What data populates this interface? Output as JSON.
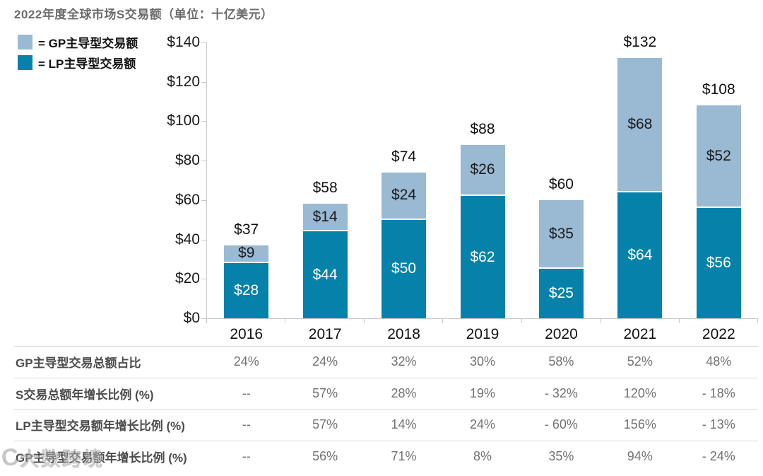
{
  "title": "2022年度全球市场S交易额（单位：十亿美元）",
  "legend": [
    {
      "label": "= GP主导型交易额",
      "color": "#9ab9d3"
    },
    {
      "label": "= LP主导型交易额",
      "color": "#0682aa"
    }
  ],
  "chart_data": {
    "type": "bar",
    "stacked": true,
    "categories": [
      "2016",
      "2017",
      "2018",
      "2019",
      "2020",
      "2021",
      "2022"
    ],
    "series": [
      {
        "name": "LP主导型交易额",
        "color": "#0682aa",
        "label_color": "#ffffff",
        "values": [
          28,
          44,
          50,
          62,
          25,
          64,
          56
        ],
        "labels": [
          "$28",
          "$44",
          "$50",
          "$62",
          "$25",
          "$64",
          "$56"
        ]
      },
      {
        "name": "GP主导型交易额",
        "color": "#9ab9d3",
        "label_color": "#1b1b1b",
        "values": [
          9,
          14,
          24,
          26,
          35,
          68,
          52
        ],
        "labels": [
          "$9",
          "$14",
          "$24",
          "$26",
          "$35",
          "$68",
          "$52"
        ]
      }
    ],
    "totals": [
      37,
      58,
      74,
      88,
      60,
      132,
      108
    ],
    "total_labels": [
      "$37",
      "$58",
      "$74",
      "$88",
      "$60",
      "$132",
      "$108"
    ],
    "ylim": [
      0,
      140
    ],
    "ytick_step": 20,
    "ytick_labels": [
      "$0",
      "$20",
      "$40",
      "$60",
      "$80",
      "$100",
      "$120",
      "$140"
    ],
    "grid": false,
    "legend_position": "top-left"
  },
  "table": {
    "rows": [
      {
        "label": "GP主导型交易总额占比",
        "values": [
          "24%",
          "24%",
          "32%",
          "30%",
          "58%",
          "52%",
          "48%"
        ]
      },
      {
        "label": "S交易总额年增长比例 (%)",
        "values": [
          "--",
          "57%",
          "28%",
          "19%",
          "- 32%",
          "120%",
          "- 18%"
        ]
      },
      {
        "label": "LP主导型交易额年增长比例 (%)",
        "values": [
          "--",
          "57%",
          "14%",
          "24%",
          "- 60%",
          "156%",
          "- 13%"
        ]
      },
      {
        "label": "GP主导型交易额年增长比例 (%)",
        "values": [
          "--",
          "56%",
          "71%",
          "8%",
          "35%",
          "94%",
          "- 24%"
        ]
      }
    ]
  },
  "watermark": {
    "icon": "C",
    "text": "大数跨境"
  }
}
